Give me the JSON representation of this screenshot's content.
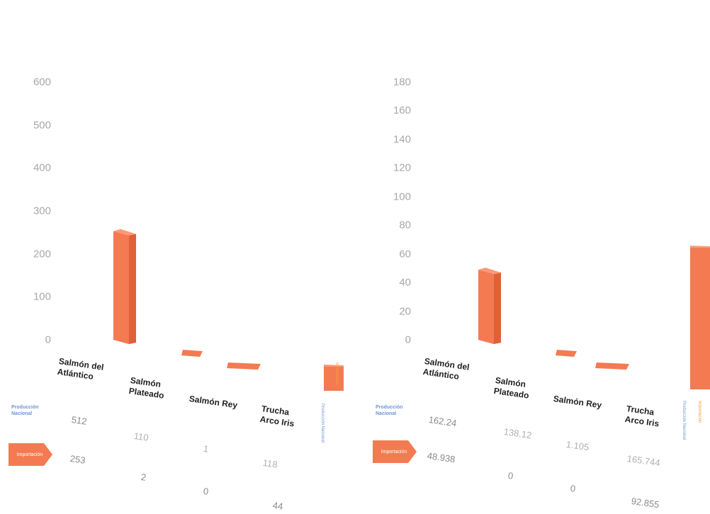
{
  "chart_data": [
    {
      "type": "bar",
      "title": "",
      "xlabel": "",
      "ylabel": "",
      "ylim": [
        0,
        600
      ],
      "yticks": [
        "0",
        "100",
        "200",
        "300",
        "400",
        "500",
        "600"
      ],
      "categories": [
        "Salmón del\nAtlántico",
        "Salmón\nPlateado",
        "Salmón Rey",
        "Trucha\nArco Iris"
      ],
      "series": [
        {
          "name": "Producción Nacional",
          "values": [
            512,
            110,
            1,
            118
          ],
          "labels": [
            "512",
            "110",
            "1",
            "118"
          ]
        },
        {
          "name": "Importación",
          "values": [
            253,
            2,
            0,
            44
          ],
          "labels": [
            "253",
            "2",
            "0",
            "44"
          ]
        }
      ],
      "rotated_legend": {
        "orange": "Importación",
        "blue": "Producción Nacional"
      }
    },
    {
      "type": "bar",
      "title": "",
      "xlabel": "",
      "ylabel": "",
      "ylim": [
        0,
        180
      ],
      "yticks": [
        "0",
        "20",
        "40",
        "60",
        "80",
        "100",
        "120",
        "140",
        "160",
        "180"
      ],
      "categories": [
        "Salmón del\nAtlántico",
        "Salmón\nPlateado",
        "Salmón Rey",
        "Trucha\nArco Iris"
      ],
      "series": [
        {
          "name": "Producción Nacional",
          "values": [
            162.24,
            138.12,
            1.105,
            165.744
          ],
          "labels": [
            "162.24",
            "138.12",
            "1.105",
            "165.744"
          ]
        },
        {
          "name": "Importación",
          "values": [
            48.938,
            0,
            0,
            92.855
          ],
          "labels": [
            "48.938",
            "0",
            "0",
            "92.855"
          ]
        }
      ],
      "rotated_legend": {
        "orange": "Importación",
        "blue": "Producción Nacional"
      }
    }
  ],
  "colors": {
    "bar_front": "#f47a52",
    "bar_side": "#e0603a",
    "bar_top": "#fa9a78",
    "tick": "#a8a8a8",
    "legend_blue": "#6f95d6",
    "legend_orange": "#f2a23a"
  },
  "legend": {
    "production_label": "Producción Nacional",
    "import_label": "Importación"
  }
}
